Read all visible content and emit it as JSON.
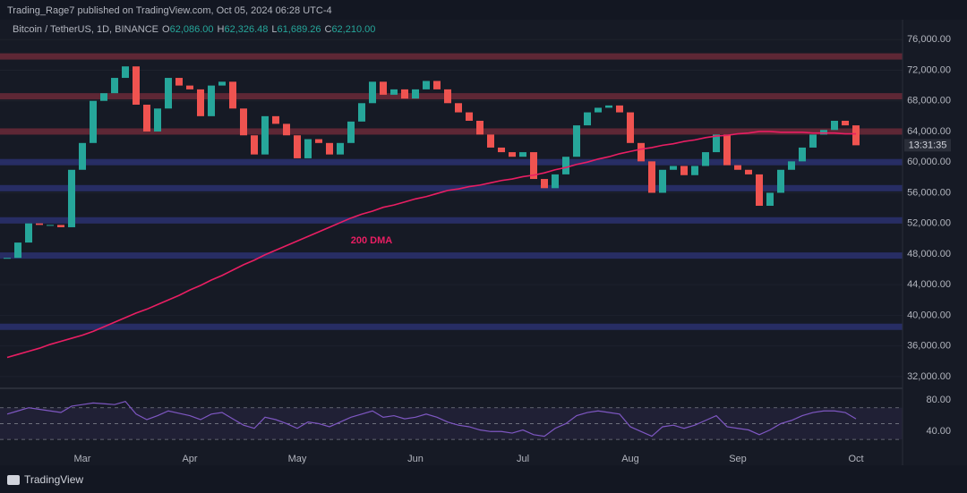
{
  "header": {
    "byline": "Trading_Rage7 published on TradingView.com, Oct 05, 2024 06:28 UTC-4"
  },
  "footer": {
    "brand": "TradingView"
  },
  "chart_data": {
    "type": "candlestick",
    "symbol": "Bitcoin / TetherUS, 1D, BINANCE",
    "ohlc": [
      {
        "label": "O",
        "value": "62,086.00"
      },
      {
        "label": "H",
        "value": "62,326.48"
      },
      {
        "label": "L",
        "value": "61,689.26"
      },
      {
        "label": "C",
        "value": "62,210.00"
      }
    ],
    "countdown": "13:31:35",
    "categories": [
      null,
      null,
      null,
      null,
      null,
      null,
      null,
      "Mar",
      null,
      null,
      null,
      null,
      null,
      null,
      null,
      null,
      null,
      "Apr",
      null,
      null,
      null,
      null,
      null,
      null,
      null,
      null,
      null,
      "May",
      null,
      null,
      null,
      null,
      null,
      null,
      null,
      null,
      null,
      null,
      "Jun",
      null,
      null,
      null,
      null,
      null,
      null,
      null,
      null,
      null,
      "Jul",
      null,
      null,
      null,
      null,
      null,
      null,
      null,
      null,
      null,
      "Aug",
      null,
      null,
      null,
      null,
      null,
      null,
      null,
      null,
      null,
      "Sep",
      null,
      null,
      null,
      null,
      null,
      null,
      null,
      null,
      null,
      null,
      "Oct"
    ],
    "values": [
      47500,
      49500,
      52000,
      51800,
      51800,
      51500,
      59000,
      62500,
      68000,
      69000,
      71000,
      72500,
      67500,
      64000,
      67000,
      71000,
      70000,
      69500,
      66000,
      70000,
      70500,
      67000,
      63500,
      61000,
      66000,
      65000,
      63500,
      60500,
      63000,
      62500,
      61000,
      62500,
      65300,
      67700,
      70500,
      68800,
      69500,
      68300,
      69500,
      70600,
      69500,
      67700,
      66500,
      65400,
      63600,
      61900,
      61300,
      60700,
      61300,
      57800,
      56600,
      58400,
      60700,
      64800,
      66500,
      67100,
      67400,
      66500,
      62500,
      60100,
      56000,
      59000,
      59500,
      58300,
      59500,
      61300,
      63600,
      59600,
      59000,
      58400,
      54300,
      56000,
      59000,
      60100,
      61900,
      63600,
      64200,
      65400,
      64800,
      62200
    ],
    "up_color": "#26a69a",
    "down_color": "#ef5350",
    "overlays": [
      {
        "name": "200 DMA",
        "color": "#e91e63",
        "values": [
          34500,
          34900,
          35300,
          35700,
          36200,
          36600,
          37000,
          37400,
          37900,
          38500,
          39100,
          39700,
          40300,
          40800,
          41400,
          42000,
          42600,
          43300,
          43900,
          44600,
          45200,
          45900,
          46600,
          47200,
          47900,
          48500,
          49100,
          49700,
          50300,
          50900,
          51500,
          52100,
          52700,
          53200,
          53600,
          54100,
          54400,
          54800,
          55200,
          55500,
          55900,
          56300,
          56500,
          56800,
          57000,
          57300,
          57600,
          57800,
          58100,
          58300,
          58600,
          59000,
          59300,
          59700,
          60000,
          60400,
          60700,
          61100,
          61400,
          61700,
          61900,
          62200,
          62400,
          62700,
          62900,
          63200,
          63400,
          63500,
          63700,
          63800,
          64000,
          64000,
          63900,
          63900,
          63900,
          63800,
          63800,
          63800,
          63700,
          63700
        ]
      }
    ],
    "levels": [
      {
        "value": 73800,
        "color": "#6b2a38"
      },
      {
        "value": 68600,
        "color": "#6b2a38"
      },
      {
        "value": 64000,
        "color": "#6b2a38"
      },
      {
        "value": 60000,
        "color": "#2a3170"
      },
      {
        "value": 56600,
        "color": "#2a3170"
      },
      {
        "value": 52400,
        "color": "#2a3170"
      },
      {
        "value": 47800,
        "color": "#2a3170"
      },
      {
        "value": 38500,
        "color": "#2a3170"
      }
    ],
    "ylim": [
      30700,
      78600
    ],
    "yticks": [
      {
        "value": 32000,
        "label": "32,000.00"
      },
      {
        "value": 36000,
        "label": "36,000.00"
      },
      {
        "value": 40000,
        "label": "40,000.00"
      },
      {
        "value": 44000,
        "label": "44,000.00"
      },
      {
        "value": 48000,
        "label": "48,000.00"
      },
      {
        "value": 52000,
        "label": "52,000.00"
      },
      {
        "value": 56000,
        "label": "56,000.00"
      },
      {
        "value": 60000,
        "label": "60,000.00"
      },
      {
        "value": 64000,
        "label": "64,000.00"
      },
      {
        "value": 68000,
        "label": "68,000.00"
      },
      {
        "value": 72000,
        "label": "72,000.00"
      },
      {
        "value": 76000,
        "label": "76,000.00"
      }
    ],
    "grid": true,
    "rsi": {
      "color": "#7e57c2",
      "ylim": [
        20,
        90
      ],
      "yticks": [
        {
          "value": 40,
          "label": "40.00"
        },
        {
          "value": 80,
          "label": "80.00"
        }
      ],
      "guide_levels": [
        70,
        50,
        30
      ],
      "values": [
        62,
        66,
        70,
        68,
        66,
        64,
        72,
        74,
        76,
        75,
        74,
        78,
        62,
        55,
        60,
        66,
        63,
        60,
        55,
        62,
        64,
        56,
        48,
        44,
        58,
        55,
        50,
        44,
        52,
        50,
        46,
        52,
        58,
        62,
        66,
        58,
        60,
        56,
        58,
        62,
        58,
        52,
        48,
        46,
        42,
        40,
        40,
        38,
        42,
        36,
        34,
        44,
        50,
        60,
        64,
        66,
        64,
        62,
        46,
        40,
        34,
        46,
        48,
        44,
        48,
        54,
        60,
        46,
        44,
        42,
        36,
        42,
        50,
        54,
        60,
        64,
        66,
        66,
        64,
        56
      ]
    }
  }
}
